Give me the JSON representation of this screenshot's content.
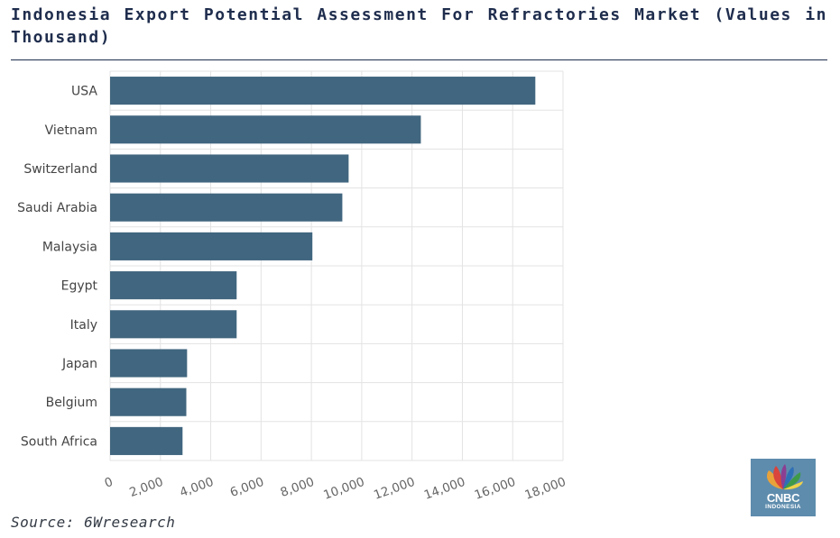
{
  "page": {
    "title": "Indonesia Export Potential Assessment For Refractories Market (Values in Thousand)",
    "source": "Source: 6Wresearch",
    "logo_text": "CNBC",
    "logo_subtext": "INDONESIA"
  },
  "colors": {
    "bar": "#41667f",
    "grid": "#e3e3e3",
    "title": "#1f2d4d",
    "label": "#444444",
    "logo_bg": "#5e8cad"
  },
  "chart_data": {
    "type": "bar",
    "orientation": "horizontal",
    "categories": [
      "USA",
      "Vietnam",
      "Switzerland",
      "Saudi Arabia",
      "Malaysia",
      "Egypt",
      "Italy",
      "Japan",
      "Belgium",
      "South Africa"
    ],
    "values": [
      16900,
      12350,
      9480,
      9230,
      8040,
      5030,
      5030,
      3060,
      3030,
      2880
    ],
    "xlim": [
      0,
      18000
    ],
    "xticks": [
      0,
      2000,
      4000,
      6000,
      8000,
      10000,
      12000,
      14000,
      16000,
      18000
    ],
    "xtick_labels": [
      "0",
      "2,000",
      "4,000",
      "6,000",
      "8,000",
      "10,000",
      "12,000",
      "14,000",
      "16,000",
      "18,000"
    ],
    "grid": true,
    "legend": false
  }
}
